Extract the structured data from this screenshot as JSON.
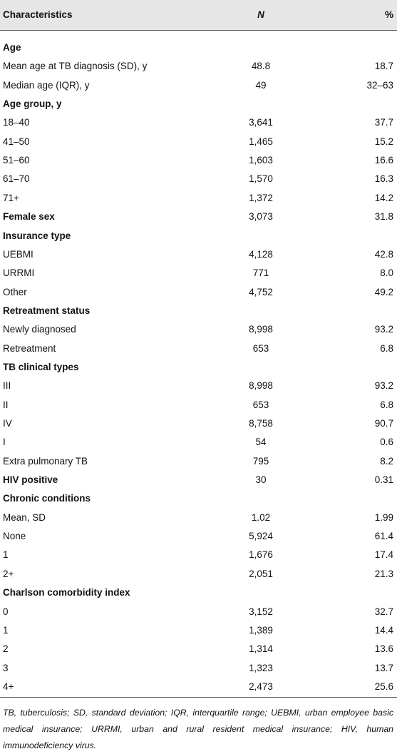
{
  "table": {
    "header": [
      "Characteristics",
      "N",
      "%"
    ],
    "groups": [
      {
        "label": "Age",
        "rows": [
          [
            "Mean age at TB diagnosis (SD), y",
            "48.8",
            "18.7"
          ],
          [
            "Median age (IQR), y",
            "49",
            "32–63"
          ]
        ]
      },
      {
        "label": "Age group, y",
        "rows": [
          [
            "18–40",
            "3,641",
            "37.7"
          ],
          [
            "41–50",
            "1,465",
            "15.2"
          ],
          [
            "51–60",
            "1,603",
            "16.6"
          ],
          [
            "61–70",
            "1,570",
            "16.3"
          ],
          [
            "71+",
            "1,372",
            "14.2"
          ]
        ]
      },
      {
        "label": "Female sex",
        "values": [
          "3,073",
          "31.8"
        ]
      },
      {
        "label": "Insurance type",
        "rows": [
          [
            "UEBMI",
            "4,128",
            "42.8"
          ],
          [
            "URRMI",
            "771",
            "8.0"
          ],
          [
            "Other",
            "4,752",
            "49.2"
          ]
        ]
      },
      {
        "label": "Retreatment status",
        "rows": [
          [
            "Newly diagnosed",
            "8,998",
            "93.2"
          ],
          [
            "Retreatment",
            "653",
            "6.8"
          ]
        ]
      },
      {
        "label": "TB clinical types",
        "rows": [
          [
            "III",
            "8,998",
            "93.2"
          ],
          [
            "II",
            "653",
            "6.8"
          ],
          [
            "IV",
            "8,758",
            "90.7"
          ],
          [
            "I",
            "54",
            "0.6"
          ],
          [
            "Extra pulmonary TB",
            "795",
            "8.2"
          ]
        ]
      },
      {
        "label": "HIV positive",
        "values": [
          "30",
          "0.31"
        ]
      },
      {
        "label": "Chronic conditions",
        "rows": [
          [
            "Mean, SD",
            "1.02",
            "1.99"
          ],
          [
            "None",
            "5,924",
            "61.4"
          ],
          [
            "1",
            "1,676",
            "17.4"
          ],
          [
            "2+",
            "2,051",
            "21.3"
          ]
        ]
      },
      {
        "label": "Charlson comorbidity index",
        "rows": [
          [
            "0",
            "3,152",
            "32.7"
          ],
          [
            "1",
            "1,389",
            "14.4"
          ],
          [
            "2",
            "1,314",
            "13.6"
          ],
          [
            "3",
            "1,323",
            "13.7"
          ],
          [
            "4+",
            "2,473",
            "25.6"
          ]
        ]
      }
    ]
  },
  "footnote": "TB, tuberculosis; SD, standard deviation; IQR, interquartile range; UEBMI, urban employee basic medical insurance; URRMI, urban and rural resident medical insurance; HIV, human immunodeficiency virus."
}
